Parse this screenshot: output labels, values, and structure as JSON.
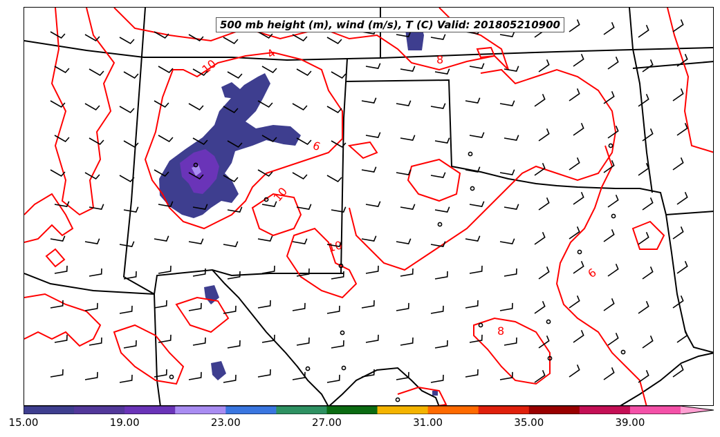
{
  "title": "500 mb height (m), wind (m/s), T (C) Valid: 201805210900",
  "colorbar": {
    "colors": [
      "#3e3e8f",
      "#52389a",
      "#6a34b8",
      "#a98cf2",
      "#3a76e0",
      "#2e9162",
      "#0b6b12",
      "#f4b400",
      "#ff6a00",
      "#e0200c",
      "#990000",
      "#c40f55",
      "#f451a8",
      "#ff9fd2"
    ],
    "tick_labels": [
      "15.00",
      "19.00",
      "23.00",
      "27.00",
      "31.00",
      "35.00",
      "39.00"
    ]
  },
  "temperature_contours": {
    "color": "#ff0000",
    "labels": [
      "4",
      "10",
      "8",
      "6",
      "10",
      "10",
      "8",
      "6"
    ]
  },
  "wind_barbs": {
    "color": "#000000"
  }
}
